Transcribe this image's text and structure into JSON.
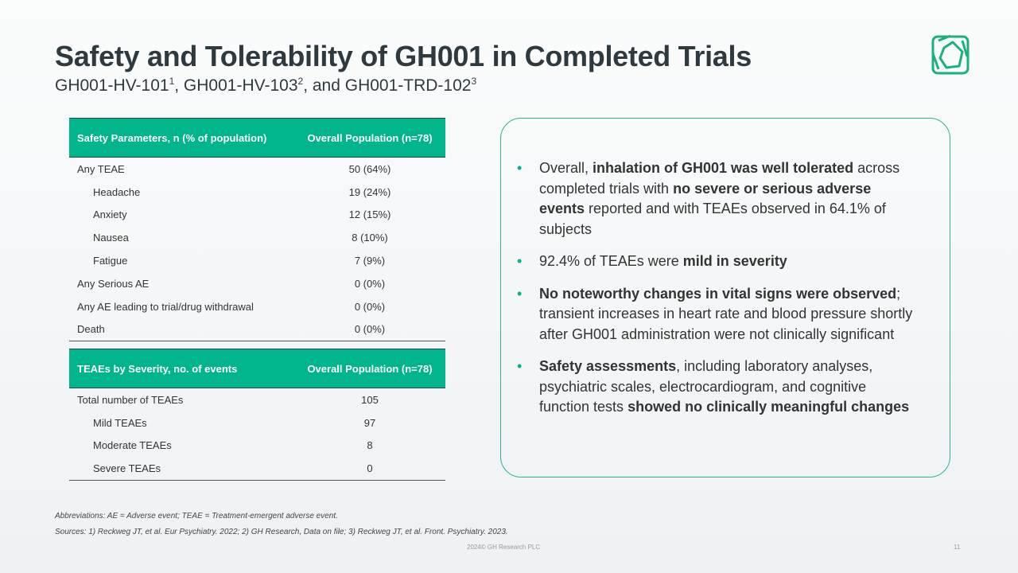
{
  "title": "Safety and Tolerability of GH001 in Completed Trials",
  "subtitle": {
    "t1": "GH001-HV-101",
    "s1": "1",
    "t2": ", GH001-HV-103",
    "s2": "2",
    "t3": ", and GH001-TRD-102",
    "s3": "3"
  },
  "table1": {
    "headers": [
      "Safety Parameters, n (% of population)",
      "Overall Population (n=78)"
    ],
    "rows": [
      [
        "Any TEAE",
        "50 (64%)"
      ],
      [
        "Headache",
        "19 (24%)"
      ],
      [
        "Anxiety",
        "12 (15%)"
      ],
      [
        "Nausea",
        "8 (10%)"
      ],
      [
        "Fatigue",
        "7 (9%)"
      ],
      [
        "Any Serious AE",
        "0 (0%)"
      ],
      [
        "Any AE leading to trial/drug withdrawal",
        "0 (0%)"
      ],
      [
        "Death",
        "0 (0%)"
      ]
    ]
  },
  "table2": {
    "headers": [
      "TEAEs by Severity, no. of events",
      "Overall Population (n=78)"
    ],
    "rows": [
      [
        "Total number of TEAEs",
        "105"
      ],
      [
        "Mild TEAEs",
        "97"
      ],
      [
        "Moderate TEAEs",
        "8"
      ],
      [
        "Severe TEAEs",
        "0"
      ]
    ]
  },
  "bullets": [
    [
      "Overall, ",
      "inhalation of GH001 was well tolerated",
      " across completed trials with ",
      "no severe or serious adverse events",
      " reported and with TEAEs observed in 64.1% of subjects"
    ],
    [
      "92.4% of TEAEs were ",
      "mild in severity"
    ],
    [
      "",
      "No noteworthy changes in vital signs were observed",
      "; transient increases in heart rate and blood pressure shortly after GH001 administration were not clinically significant"
    ],
    [
      "",
      "Safety assessments",
      ", including laboratory analyses, psychiatric scales, electrocardiogram, and cognitive function tests ",
      "showed no clinically meaningful changes"
    ]
  ],
  "abbreviations": "Abbreviations: AE = Adverse event; TEAE = Treatment-emergent adverse event.",
  "sources": "Sources: 1) Reckweg JT, et al. Eur Psychiatry. 2022; 2) GH Research, Data on file; 3) Reckweg JT, et al. Front. Psychiatry. 2023.",
  "copyright": "2024© GH Research PLC",
  "page_number": "11",
  "accent_color": "#00b48c"
}
